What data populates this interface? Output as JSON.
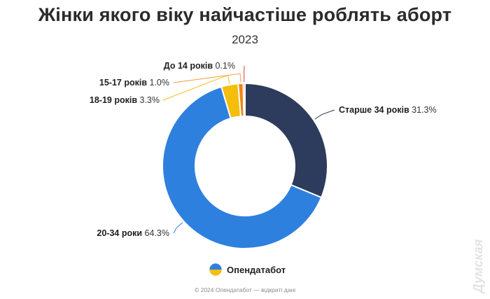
{
  "chart_data": {
    "type": "pie",
    "title": "Жінки якого віку найчастіше роблять аборт",
    "subtitle": "2023",
    "slices": [
      {
        "label": "Старше 34 років",
        "value": 31.3,
        "value_label": "31.3%",
        "color": "#2d3b5c"
      },
      {
        "label": "20-34 роки",
        "value": 64.3,
        "value_label": "64.3%",
        "color": "#2e80de"
      },
      {
        "label": "18-19 років",
        "value": 3.3,
        "value_label": "3.3%",
        "color": "#f5bd0c"
      },
      {
        "label": "15-17 років",
        "value": 1.0,
        "value_label": "1.0%",
        "color": "#f0860f"
      },
      {
        "label": "До 14 років",
        "value": 0.1,
        "value_label": "0.1%",
        "color": "#e03a2d"
      }
    ],
    "start_at": "top",
    "direction": "clockwise",
    "donut": true
  },
  "brand": {
    "name": "Опендатабот",
    "icon": "opendatabot-logo-icon"
  },
  "footer": "© 2024 Опендатабот — відкриті дані",
  "watermark": "Думская"
}
